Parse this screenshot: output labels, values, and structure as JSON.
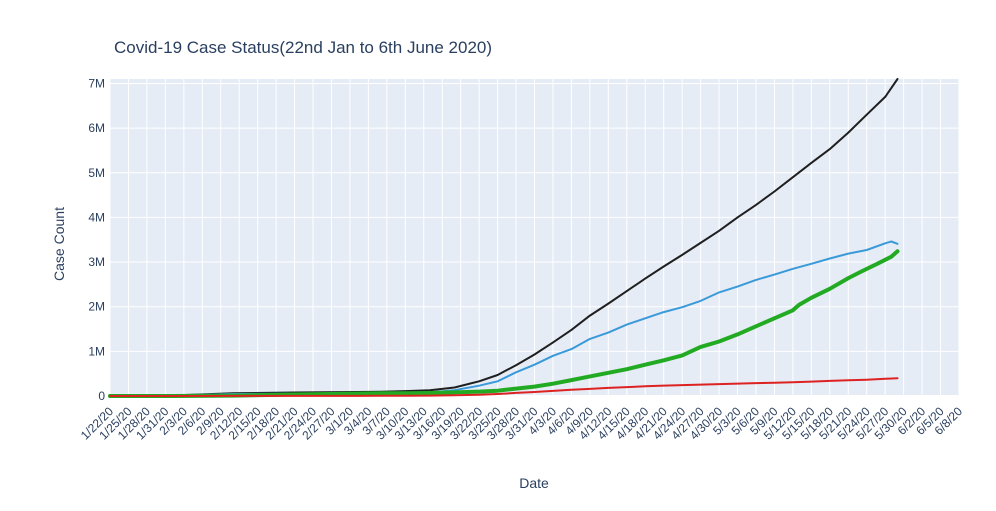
{
  "chart_data": {
    "type": "line",
    "title": "Covid-19 Case Status(22nd Jan to 6th June 2020)",
    "xlabel": "Date",
    "ylabel": "Case Count",
    "ylim": [
      0,
      7100000
    ],
    "yticks": [
      0,
      1000000,
      2000000,
      3000000,
      4000000,
      5000000,
      6000000,
      7000000
    ],
    "ytick_labels": [
      "0",
      "1M",
      "2M",
      "3M",
      "4M",
      "5M",
      "6M",
      "7M"
    ],
    "x_tick_labels": [
      "1/22/20",
      "1/25/20",
      "1/28/20",
      "1/31/20",
      "2/3/20",
      "2/6/20",
      "2/9/20",
      "2/12/20",
      "2/15/20",
      "2/18/20",
      "2/21/20",
      "2/24/20",
      "2/27/20",
      "3/1/20",
      "3/4/20",
      "3/7/20",
      "3/10/20",
      "3/13/20",
      "3/16/20",
      "3/19/20",
      "3/22/20",
      "3/25/20",
      "3/28/20",
      "3/31/20",
      "4/3/20",
      "4/6/20",
      "4/9/20",
      "4/12/20",
      "4/15/20",
      "4/18/20",
      "4/21/20",
      "4/24/20",
      "4/27/20",
      "4/30/20",
      "5/3/20",
      "5/6/20",
      "5/9/20",
      "5/12/20",
      "5/15/20",
      "5/18/20",
      "5/21/20",
      "5/24/20",
      "5/27/20",
      "5/30/20",
      "6/2/20",
      "6/5/20",
      "6/8/20"
    ],
    "grid": true,
    "series": [
      {
        "color": "#1f1f1f",
        "width": 2,
        "points": [
          [
            0,
            555
          ],
          [
            10,
            12000
          ],
          [
            20,
            60000
          ],
          [
            30,
            79000
          ],
          [
            40,
            89000
          ],
          [
            44,
            95000
          ],
          [
            48,
            110000
          ],
          [
            52,
            130000
          ],
          [
            56,
            190000
          ],
          [
            60,
            330000
          ],
          [
            63,
            470000
          ],
          [
            66,
            690000
          ],
          [
            69,
            930000
          ],
          [
            72,
            1200000
          ],
          [
            75,
            1480000
          ],
          [
            78,
            1800000
          ],
          [
            81,
            2070000
          ],
          [
            84,
            2350000
          ],
          [
            87,
            2630000
          ],
          [
            90,
            2900000
          ],
          [
            93,
            3160000
          ],
          [
            96,
            3430000
          ],
          [
            99,
            3700000
          ],
          [
            102,
            4000000
          ],
          [
            105,
            4280000
          ],
          [
            108,
            4580000
          ],
          [
            111,
            4900000
          ],
          [
            114,
            5220000
          ],
          [
            117,
            5530000
          ],
          [
            120,
            5900000
          ],
          [
            123,
            6300000
          ],
          [
            126,
            6700000
          ],
          [
            128,
            7100000
          ]
        ]
      },
      {
        "color": "#3a9ad9",
        "width": 2,
        "points": [
          [
            0,
            510
          ],
          [
            10,
            11000
          ],
          [
            20,
            45000
          ],
          [
            30,
            50000
          ],
          [
            40,
            55000
          ],
          [
            44,
            56000
          ],
          [
            48,
            65000
          ],
          [
            52,
            80000
          ],
          [
            56,
            130000
          ],
          [
            60,
            230000
          ],
          [
            63,
            330000
          ],
          [
            66,
            530000
          ],
          [
            69,
            700000
          ],
          [
            72,
            900000
          ],
          [
            75,
            1050000
          ],
          [
            78,
            1280000
          ],
          [
            81,
            1420000
          ],
          [
            84,
            1600000
          ],
          [
            87,
            1740000
          ],
          [
            90,
            1880000
          ],
          [
            93,
            1990000
          ],
          [
            96,
            2130000
          ],
          [
            99,
            2320000
          ],
          [
            102,
            2450000
          ],
          [
            105,
            2600000
          ],
          [
            108,
            2720000
          ],
          [
            111,
            2850000
          ],
          [
            114,
            2960000
          ],
          [
            117,
            3080000
          ],
          [
            120,
            3190000
          ],
          [
            123,
            3270000
          ],
          [
            126,
            3420000
          ],
          [
            127,
            3460000
          ],
          [
            128,
            3410000
          ]
        ]
      },
      {
        "color": "#22aa22",
        "width": 4,
        "points": [
          [
            0,
            28
          ],
          [
            10,
            300
          ],
          [
            20,
            10000
          ],
          [
            30,
            33000
          ],
          [
            40,
            53000
          ],
          [
            44,
            60000
          ],
          [
            48,
            63000
          ],
          [
            52,
            68000
          ],
          [
            56,
            80000
          ],
          [
            60,
            98000
          ],
          [
            63,
            118000
          ],
          [
            66,
            165000
          ],
          [
            69,
            210000
          ],
          [
            72,
            275000
          ],
          [
            75,
            355000
          ],
          [
            78,
            440000
          ],
          [
            81,
            520000
          ],
          [
            84,
            600000
          ],
          [
            87,
            700000
          ],
          [
            90,
            800000
          ],
          [
            93,
            910000
          ],
          [
            96,
            1100000
          ],
          [
            99,
            1220000
          ],
          [
            102,
            1380000
          ],
          [
            105,
            1560000
          ],
          [
            108,
            1740000
          ],
          [
            111,
            1920000
          ],
          [
            112,
            2040000
          ],
          [
            114,
            2200000
          ],
          [
            117,
            2400000
          ],
          [
            120,
            2640000
          ],
          [
            122,
            2780000
          ],
          [
            125,
            2980000
          ],
          [
            127,
            3120000
          ],
          [
            128,
            3240000
          ]
        ]
      },
      {
        "color": "#dd2222",
        "width": 2,
        "points": [
          [
            0,
            17
          ],
          [
            10,
            200
          ],
          [
            20,
            2000
          ],
          [
            30,
            2900
          ],
          [
            40,
            3300
          ],
          [
            44,
            4000
          ],
          [
            48,
            5500
          ],
          [
            52,
            9000
          ],
          [
            56,
            16000
          ],
          [
            60,
            28000
          ],
          [
            63,
            45000
          ],
          [
            66,
            70000
          ],
          [
            69,
            90000
          ],
          [
            72,
            115000
          ],
          [
            75,
            138000
          ],
          [
            78,
            160000
          ],
          [
            81,
            182000
          ],
          [
            84,
            200000
          ],
          [
            87,
            218000
          ],
          [
            90,
            232000
          ],
          [
            93,
            245000
          ],
          [
            96,
            256000
          ],
          [
            99,
            266000
          ],
          [
            102,
            277000
          ],
          [
            105,
            288000
          ],
          [
            108,
            298000
          ],
          [
            111,
            310000
          ],
          [
            114,
            323000
          ],
          [
            117,
            338000
          ],
          [
            120,
            352000
          ],
          [
            123,
            366000
          ],
          [
            126,
            385000
          ],
          [
            128,
            398000
          ]
        ]
      }
    ]
  }
}
